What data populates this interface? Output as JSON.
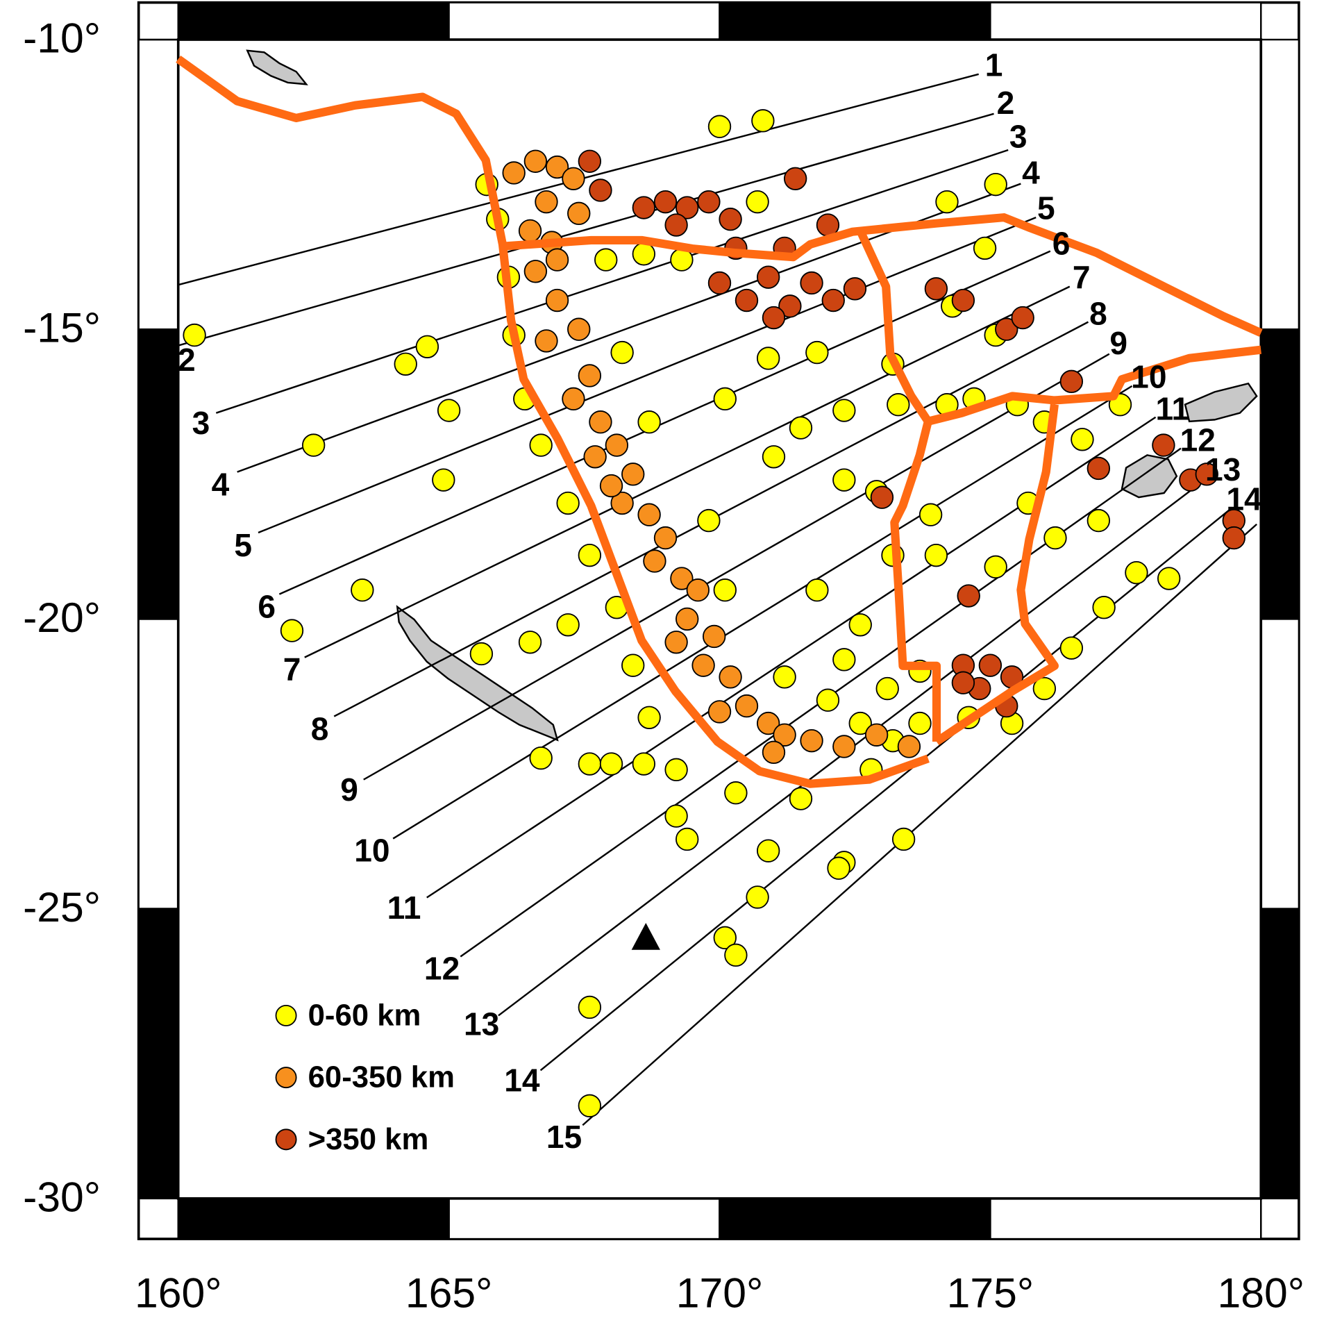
{
  "map_data": {
    "type": "scatter",
    "xlim": [
      160,
      180
    ],
    "ylim": [
      -30,
      -10
    ],
    "xticks": [
      {
        "value": 160,
        "label": "160°"
      },
      {
        "value": 165,
        "label": "165°"
      },
      {
        "value": 170,
        "label": "170°"
      },
      {
        "value": 175,
        "label": "175°"
      },
      {
        "value": 180,
        "label": "180°"
      }
    ],
    "yticks": [
      {
        "value": -10,
        "label": "-10°"
      },
      {
        "value": -15,
        "label": "-15°"
      },
      {
        "value": -20,
        "label": "-20°"
      },
      {
        "value": -25,
        "label": "-25°"
      },
      {
        "value": -30,
        "label": "-30°"
      }
    ],
    "series": [
      {
        "name": "0-60 km",
        "color": "#ffff00",
        "x": [
          160.3,
          164.2,
          164.6,
          165.0,
          162.5,
          164.9,
          163.4,
          162.1,
          165.6,
          166.5,
          167.2,
          166.7,
          167.6,
          168.0,
          168.6,
          169.4,
          169.2,
          170.9,
          170.7,
          170.1,
          170.3,
          172.3,
          172.2,
          173.4,
          167.6,
          167.6,
          170.0,
          170.8,
          170.7,
          170.9,
          171.8,
          170.1,
          171.0,
          175.1,
          174.2,
          174.9,
          174.3,
          165.7,
          165.9,
          166.1,
          166.2,
          166.4,
          166.7,
          167.2,
          167.6,
          168.1,
          168.4,
          168.7,
          169.2,
          170.3,
          171.5,
          172.8,
          167.9,
          168.6,
          169.3,
          168.2,
          168.7,
          169.8,
          170.1,
          171.2,
          172.0,
          172.6,
          173.2,
          173.7,
          173.2,
          173.3,
          174.2,
          174.7,
          175.5,
          176.0,
          176.7,
          177.4,
          172.3,
          171.5,
          172.3,
          172.9,
          173.9,
          174.0,
          173.2,
          175.1,
          175.7,
          176.2,
          177.0,
          177.7,
          178.3,
          177.1,
          176.5,
          176.0,
          172.6,
          172.3,
          171.8,
          173.1,
          173.7,
          174.6,
          175.4,
          175.1
        ],
        "y": [
          -15.1,
          -15.6,
          -15.3,
          -16.4,
          -17.0,
          -17.6,
          -19.5,
          -20.2,
          -20.6,
          -20.4,
          -20.1,
          -22.4,
          -22.5,
          -22.5,
          -22.5,
          -23.8,
          -23.4,
          -24.0,
          -24.8,
          -25.5,
          -25.8,
          -24.2,
          -24.3,
          -23.8,
          -26.7,
          -28.4,
          -11.5,
          -11.4,
          -12.8,
          -15.5,
          -15.4,
          -16.2,
          -17.2,
          -12.5,
          -12.8,
          -13.6,
          -14.6,
          -12.5,
          -13.1,
          -14.1,
          -15.1,
          -16.2,
          -17.0,
          -18.0,
          -18.9,
          -19.8,
          -20.8,
          -21.7,
          -22.6,
          -23.0,
          -23.1,
          -22.6,
          -13.8,
          -13.7,
          -13.8,
          -15.4,
          -16.6,
          -18.3,
          -19.5,
          -21.0,
          -21.4,
          -21.8,
          -22.1,
          -21.8,
          -15.6,
          -16.3,
          -16.3,
          -16.2,
          -16.3,
          -16.6,
          -16.9,
          -16.3,
          -16.4,
          -16.7,
          -17.6,
          -17.8,
          -18.2,
          -18.9,
          -18.9,
          -19.1,
          -18.0,
          -18.6,
          -18.3,
          -19.2,
          -19.3,
          -19.8,
          -20.5,
          -21.2,
          -20.1,
          -20.7,
          -19.5,
          -21.2,
          -20.9,
          -21.7,
          -21.8,
          -15.1
        ]
      },
      {
        "name": "60-350 km",
        "color": "#f7901e",
        "x": [
          166.2,
          166.6,
          167.0,
          167.3,
          166.8,
          166.5,
          166.9,
          167.4,
          166.6,
          167.0,
          166.8,
          167.4,
          167.6,
          167.3,
          167.8,
          168.1,
          167.7,
          168.4,
          168.2,
          168.7,
          169.0,
          168.8,
          169.3,
          169.6,
          169.4,
          169.9,
          169.7,
          170.2,
          170.5,
          170.9,
          171.2,
          171.7,
          172.3,
          172.9,
          173.5,
          167.0,
          168.0,
          169.2,
          170.0,
          171.0
        ],
        "y": [
          -12.3,
          -12.1,
          -12.2,
          -12.4,
          -12.8,
          -13.3,
          -13.5,
          -13.0,
          -14.0,
          -14.5,
          -15.2,
          -15.0,
          -15.8,
          -16.2,
          -16.6,
          -17.0,
          -17.2,
          -17.5,
          -18.0,
          -18.2,
          -18.6,
          -19.0,
          -19.3,
          -19.5,
          -20.0,
          -20.3,
          -20.8,
          -21.0,
          -21.5,
          -21.8,
          -22.0,
          -22.1,
          -22.2,
          -22.0,
          -22.2,
          -13.8,
          -17.7,
          -20.4,
          -21.6,
          -22.3
        ]
      },
      {
        "name": ">350 km",
        "color": "#cc4411",
        "x": [
          167.6,
          167.8,
          168.6,
          169.0,
          169.4,
          169.8,
          170.2,
          169.2,
          171.4,
          170.0,
          170.5,
          170.9,
          171.3,
          171.7,
          172.1,
          172.5,
          171.0,
          170.3,
          171.2,
          172.0,
          174.0,
          174.5,
          175.3,
          175.6,
          176.5,
          178.2,
          178.7,
          179.0,
          179.5,
          179.5,
          177.0,
          173.0,
          174.6,
          174.5,
          175.0,
          175.4,
          174.8,
          175.3,
          174.5
        ],
        "y": [
          -12.1,
          -12.6,
          -12.9,
          -12.8,
          -12.9,
          -12.8,
          -13.1,
          -13.2,
          -12.4,
          -14.2,
          -14.5,
          -14.1,
          -14.6,
          -14.2,
          -14.5,
          -14.3,
          -14.8,
          -13.6,
          -13.6,
          -13.2,
          -14.3,
          -14.5,
          -15.0,
          -14.8,
          -15.9,
          -17.0,
          -17.6,
          -17.5,
          -18.3,
          -18.6,
          -17.4,
          -17.9,
          -19.6,
          -20.8,
          -20.8,
          -21.0,
          -21.2,
          -21.5,
          -21.1
        ]
      }
    ],
    "profile_labels": {
      "left": [
        "2",
        "3",
        "4",
        "5",
        "6",
        "7",
        "8",
        "9",
        "10",
        "11",
        "12",
        "13",
        "14",
        "15"
      ],
      "right": [
        "1",
        "2",
        "3",
        "4",
        "5",
        "6",
        "7",
        "8",
        "9",
        "10",
        "11",
        "12",
        "13",
        "14"
      ]
    }
  }
}
